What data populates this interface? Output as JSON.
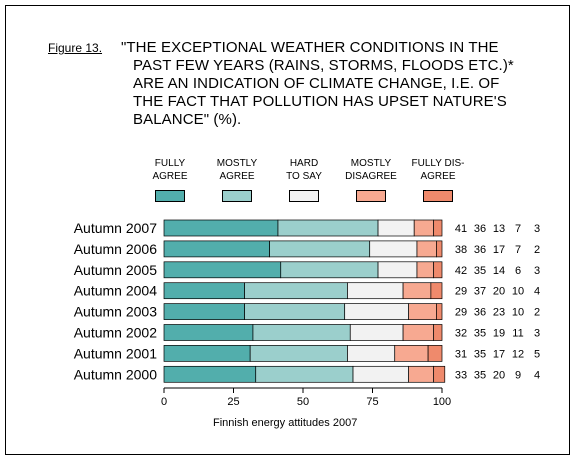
{
  "figure_label": "Figure 13.",
  "title_lines": [
    "\"THE EXCEPTIONAL WEATHER CONDITIONS IN THE",
    "PAST FEW YEARS (RAINS, STORMS, FLOODS ETC.)*",
    "ARE AN INDICATION OF CLIMATE CHANGE, I.E. OF",
    "THE FACT THAT POLLUTION HAS UPSET NATURE'S",
    "BALANCE\" (%)."
  ],
  "source": "Finnish energy attitudes 2007",
  "legend": [
    {
      "line1": "FULLY",
      "line2": "AGREE",
      "color": "#52aeac"
    },
    {
      "line1": "MOSTLY",
      "line2": "AGREE",
      "color": "#9bcfcc"
    },
    {
      "line1": "HARD",
      "line2": "TO SAY",
      "color": "#f2f2f2"
    },
    {
      "line1": "MOSTLY",
      "line2": "DISAGREE",
      "color": "#f7a991"
    },
    {
      "line1": "FULLY DIS-",
      "line2": "AGREE",
      "color": "#ef8a6c"
    }
  ],
  "chart_data": {
    "type": "bar",
    "orientation": "horizontal",
    "stacked": true,
    "categories": [
      "Autumn 2007",
      "Autumn 2006",
      "Autumn 2005",
      "Autumn 2004",
      "Autumn 2003",
      "Autumn 2002",
      "Autumn 2001",
      "Autumn 2000"
    ],
    "series": [
      {
        "name": "FULLY AGREE",
        "color": "#52aeac",
        "values": [
          41,
          38,
          42,
          29,
          29,
          32,
          31,
          33
        ]
      },
      {
        "name": "MOSTLY AGREE",
        "color": "#9bcfcc",
        "values": [
          36,
          36,
          35,
          37,
          36,
          35,
          35,
          35
        ]
      },
      {
        "name": "HARD TO SAY",
        "color": "#f2f2f2",
        "values": [
          13,
          17,
          14,
          20,
          23,
          19,
          17,
          20
        ]
      },
      {
        "name": "MOSTLY DISAGREE",
        "color": "#f7a991",
        "values": [
          7,
          7,
          6,
          10,
          10,
          11,
          12,
          9
        ]
      },
      {
        "name": "FULLY DISAGREE",
        "color": "#ef8a6c",
        "values": [
          3,
          2,
          3,
          4,
          2,
          3,
          5,
          4
        ]
      }
    ],
    "xlim": [
      0,
      100
    ],
    "xticks": [
      0,
      25,
      50,
      75,
      100
    ],
    "xlabel": "",
    "ylabel": "",
    "grid": false,
    "legend_position": "top"
  }
}
